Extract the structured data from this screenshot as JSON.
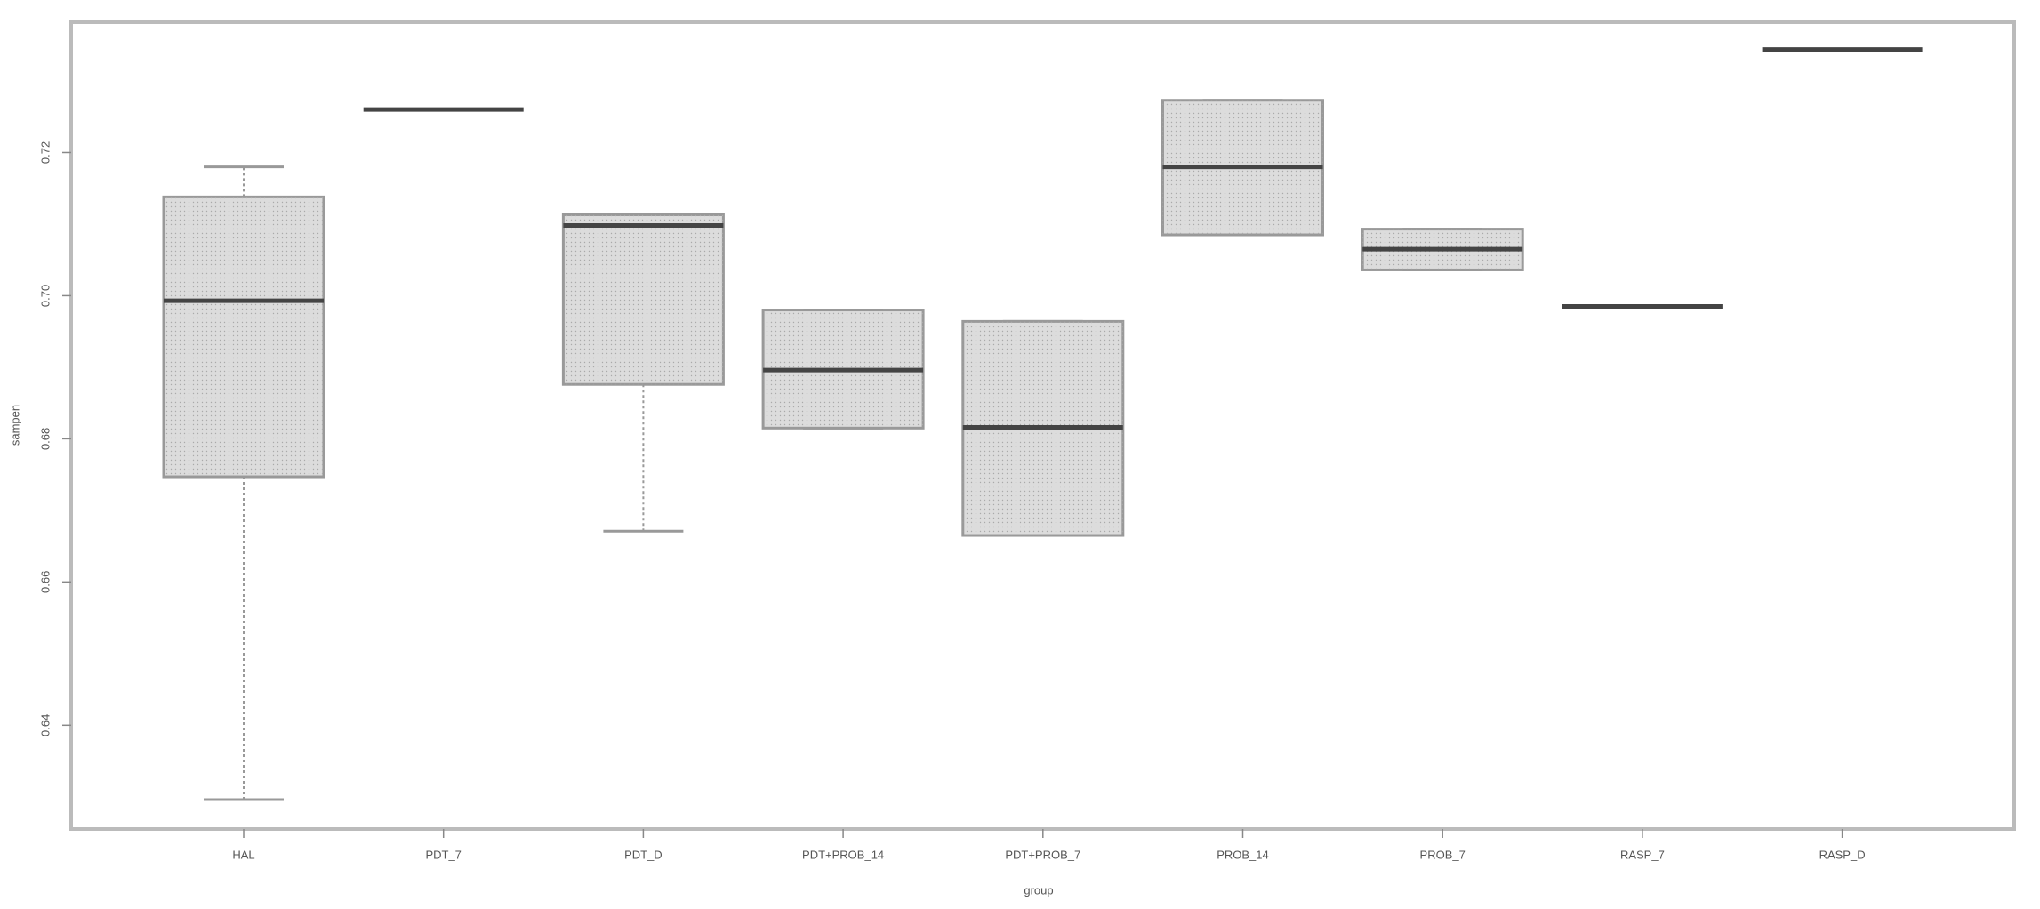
{
  "chart_data": {
    "type": "box",
    "x_label": "group",
    "y_label": "sampen",
    "categories": [
      "HAL",
      "PDT_7",
      "PDT_D",
      "PDT+PROB_14",
      "PDT+PROB_7",
      "PROB_14",
      "PROB_7",
      "RASP_7",
      "RASP_D"
    ],
    "min": [
      0.6296,
      0.726,
      0.6671,
      0.6815,
      0.6665,
      0.7085,
      0.7036,
      0.6985,
      0.7344
    ],
    "q1": [
      0.6747,
      0.726,
      0.6876,
      0.6815,
      0.6665,
      0.7085,
      0.7036,
      0.6985,
      0.7344
    ],
    "median": [
      0.6993,
      0.726,
      0.7098,
      0.6896,
      0.6816,
      0.718,
      0.7065,
      0.6985,
      0.7344
    ],
    "q3": [
      0.7138,
      0.726,
      0.7113,
      0.698,
      0.6964,
      0.7273,
      0.7093,
      0.6985,
      0.7344
    ],
    "max": [
      0.718,
      0.726,
      0.7113,
      0.698,
      0.6964,
      0.7273,
      0.7093,
      0.6985,
      0.7344
    ],
    "color": "#dcdcdc",
    "ylim": [
      0.6255,
      0.7382
    ],
    "yticks": [
      0.64,
      0.66,
      0.68,
      {
        "value": 0.7,
        "label": "0.70"
      },
      0.72
    ]
  }
}
